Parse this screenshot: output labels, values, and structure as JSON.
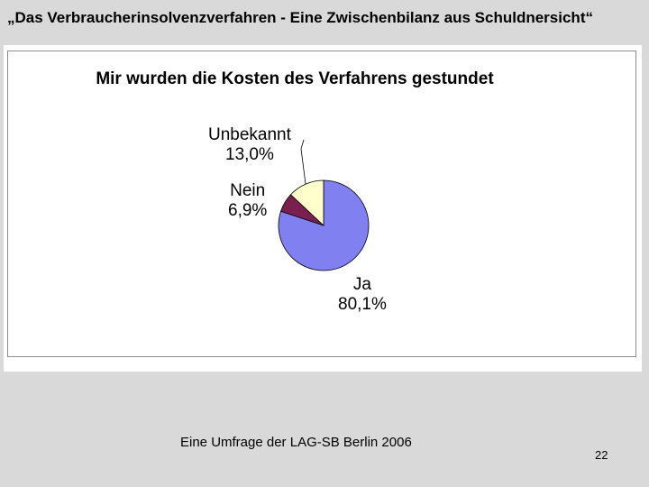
{
  "slide": {
    "title": "„Das Verbraucherinsolvenzverfahren - Eine Zwischenbilanz aus Schuldnersicht“",
    "footer_source": "Eine Umfrage der LAG-SB Berlin 2006",
    "page_number": "22"
  },
  "chart_data": {
    "type": "pie",
    "title": "Mir wurden die Kosten des Verfahrens gestundet",
    "slices": [
      {
        "label": "Ja",
        "percent_label": "80,1%",
        "value": 80.1,
        "color": "#8080f0"
      },
      {
        "label": "Nein",
        "percent_label": "6,9%",
        "value": 6.9,
        "color": "#7a1f4f"
      },
      {
        "label": "Unbekannt",
        "percent_label": "13,0%",
        "value": 13.0,
        "color": "#ffffcc"
      }
    ],
    "legend": "none",
    "data_labels": "outside"
  }
}
